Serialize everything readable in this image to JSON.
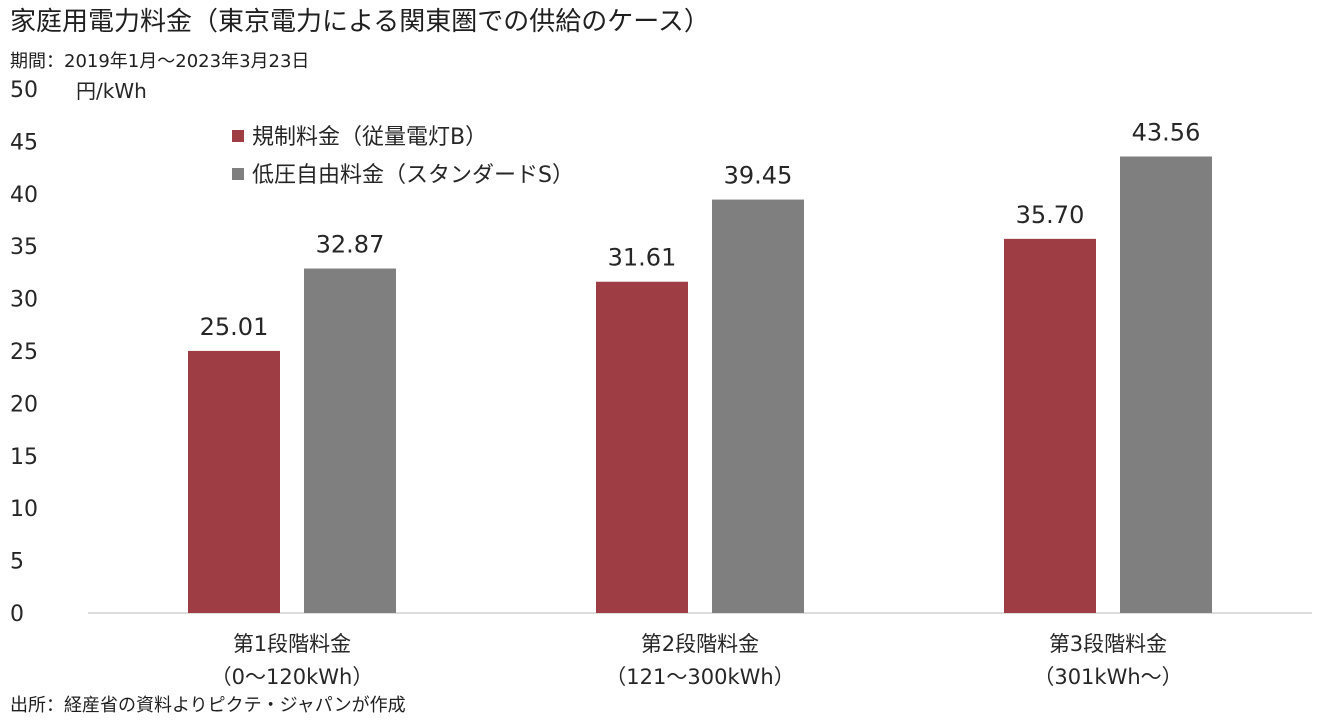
{
  "header": {
    "title": "家庭用電力料金（東京電力による関東圏での供給のケース）",
    "period": "期間：2019年1月～2023年3月23日"
  },
  "footer": {
    "source": "出所：経産省の資料よりピクテ・ジャパンが作成"
  },
  "chart_data": {
    "type": "bar",
    "unit_label": "円/kWh",
    "categories": [
      [
        "第1段階料金",
        "（0～120kWh）"
      ],
      [
        "第2段階料金",
        "（121～300kWh）"
      ],
      [
        "第3段階料金",
        "（301kWh～）"
      ]
    ],
    "series": [
      {
        "name": "規制料金（従量電灯B）",
        "values": [
          25.01,
          31.61,
          35.7
        ],
        "labels": [
          "25.01",
          "31.61",
          "35.70"
        ],
        "color": "#9e3d44"
      },
      {
        "name": "低圧自由料金（スタンダードS）",
        "values": [
          32.87,
          39.45,
          43.56
        ],
        "labels": [
          "32.87",
          "39.45",
          "43.56"
        ],
        "color": "#7f7f7f"
      }
    ],
    "ylim": [
      0,
      50
    ],
    "yticks": [
      "0",
      "5",
      "10",
      "15",
      "20",
      "25",
      "30",
      "35",
      "40",
      "45",
      "50"
    ],
    "grid": false,
    "legend_position": "top-left"
  }
}
